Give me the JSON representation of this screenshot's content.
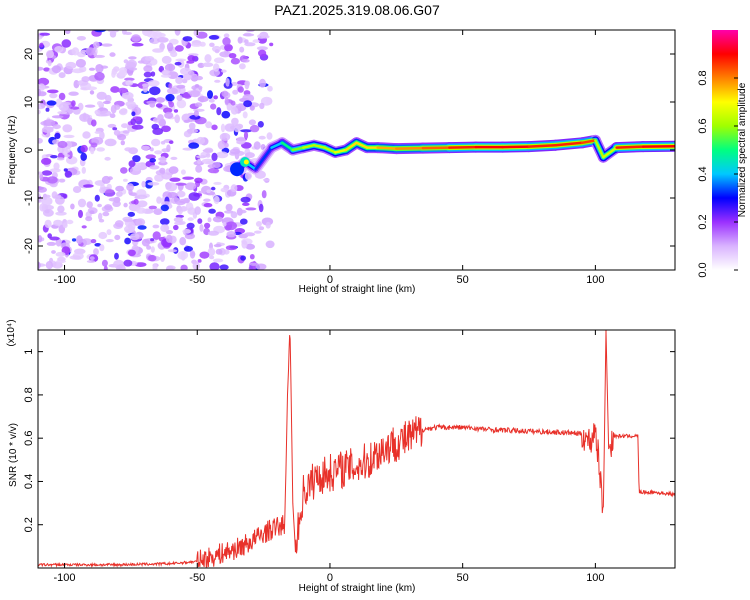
{
  "chart_data": [
    {
      "type": "heatmap",
      "title": "PAZ1.2025.319.08.06.G07",
      "xlabel": "Height of straight line (km)",
      "ylabel": "Frequency (Hz)",
      "xlim": [
        -110,
        130
      ],
      "ylim": [
        -25,
        25
      ],
      "xticks": [
        -100,
        -50,
        0,
        50,
        100
      ],
      "yticks": [
        -20,
        -10,
        0,
        10,
        20
      ],
      "colorbar": {
        "label": "Normalized spectral amplitude",
        "range": [
          0,
          1
        ],
        "ticks": [
          0.0,
          0.2,
          0.4,
          0.6,
          0.8
        ],
        "colormap": [
          "#ffffff",
          "#d9b3ff",
          "#9b30ff",
          "#0000ff",
          "#00c8ff",
          "#00ff80",
          "#a0ff00",
          "#ffff00",
          "#ff8000",
          "#ff0000",
          "#ff00aa"
        ]
      },
      "noise_region": {
        "x_range": [
          -110,
          -22
        ],
        "freq_range": [
          -25,
          25
        ],
        "typical_amplitude": 0.12
      },
      "ridge": [
        {
          "x": -35,
          "freq": -4.0,
          "amp": 0.45
        },
        {
          "x": -32,
          "freq": -2.5,
          "amp": 0.5
        },
        {
          "x": -28,
          "freq": -4.0,
          "amp": 0.3
        },
        {
          "x": -22,
          "freq": 0.5,
          "amp": 0.35
        },
        {
          "x": -18,
          "freq": 1.5,
          "amp": 0.45
        },
        {
          "x": -14,
          "freq": 0.0,
          "amp": 0.55
        },
        {
          "x": -10,
          "freq": 0.5,
          "amp": 0.6
        },
        {
          "x": -6,
          "freq": 1.0,
          "amp": 0.65
        },
        {
          "x": -2,
          "freq": 0.5,
          "amp": 0.6
        },
        {
          "x": 2,
          "freq": -0.5,
          "amp": 0.65
        },
        {
          "x": 6,
          "freq": 0.0,
          "amp": 0.7
        },
        {
          "x": 10,
          "freq": 1.5,
          "amp": 0.75
        },
        {
          "x": 14,
          "freq": 0.5,
          "amp": 0.7
        },
        {
          "x": 18,
          "freq": 0.5,
          "amp": 0.75
        },
        {
          "x": 25,
          "freq": 0.3,
          "amp": 0.78
        },
        {
          "x": 35,
          "freq": 0.4,
          "amp": 0.8
        },
        {
          "x": 45,
          "freq": 0.5,
          "amp": 0.85
        },
        {
          "x": 55,
          "freq": 0.6,
          "amp": 0.9
        },
        {
          "x": 65,
          "freq": 0.6,
          "amp": 0.9
        },
        {
          "x": 75,
          "freq": 0.7,
          "amp": 0.9
        },
        {
          "x": 85,
          "freq": 1.0,
          "amp": 0.85
        },
        {
          "x": 95,
          "freq": 1.5,
          "amp": 0.9
        },
        {
          "x": 100,
          "freq": 2.0,
          "amp": 0.8
        },
        {
          "x": 103,
          "freq": -1.5,
          "amp": 0.45
        },
        {
          "x": 108,
          "freq": 0.5,
          "amp": 0.85
        },
        {
          "x": 118,
          "freq": 0.7,
          "amp": 0.9
        },
        {
          "x": 130,
          "freq": 0.8,
          "amp": 0.9
        }
      ]
    },
    {
      "type": "line",
      "title": "",
      "xlabel": "Height of straight line (km)",
      "ylabel": "SNR (10 * v/v)",
      "y_multiplier": "(x10⁴)",
      "xlim": [
        -110,
        130
      ],
      "ylim": [
        0,
        1.1
      ],
      "xticks": [
        -100,
        -50,
        0,
        50,
        100
      ],
      "yticks": [
        0.2,
        0.4,
        0.6,
        0.8,
        1
      ],
      "series": [
        {
          "name": "SNR",
          "color": "#e8312a",
          "points": [
            [
              -110,
              0.015
            ],
            [
              -80,
              0.015
            ],
            [
              -60,
              0.02
            ],
            [
              -50,
              0.03
            ],
            [
              -45,
              0.05
            ],
            [
              -40,
              0.07
            ],
            [
              -35,
              0.09
            ],
            [
              -30,
              0.12
            ],
            [
              -25,
              0.16
            ],
            [
              -20,
              0.19
            ],
            [
              -17,
              0.2
            ],
            [
              -16,
              0.8
            ],
            [
              -15,
              1.1
            ],
            [
              -14,
              0.3
            ],
            [
              -13,
              0.08
            ],
            [
              -10,
              0.35
            ],
            [
              -5,
              0.42
            ],
            [
              0,
              0.44
            ],
            [
              5,
              0.46
            ],
            [
              10,
              0.47
            ],
            [
              15,
              0.5
            ],
            [
              20,
              0.55
            ],
            [
              25,
              0.58
            ],
            [
              30,
              0.6
            ],
            [
              35,
              0.64
            ],
            [
              40,
              0.65
            ],
            [
              50,
              0.65
            ],
            [
              60,
              0.64
            ],
            [
              70,
              0.635
            ],
            [
              80,
              0.63
            ],
            [
              90,
              0.625
            ],
            [
              95,
              0.62
            ],
            [
              98,
              0.58
            ],
            [
              100,
              0.65
            ],
            [
              102,
              0.4
            ],
            [
              103,
              0.25
            ],
            [
              104,
              1.1
            ],
            [
              105,
              0.55
            ],
            [
              107,
              0.61
            ],
            [
              115,
              0.61
            ],
            [
              116,
              0.61
            ],
            [
              116.5,
              0.35
            ],
            [
              122,
              0.35
            ],
            [
              130,
              0.34
            ]
          ]
        }
      ]
    }
  ]
}
